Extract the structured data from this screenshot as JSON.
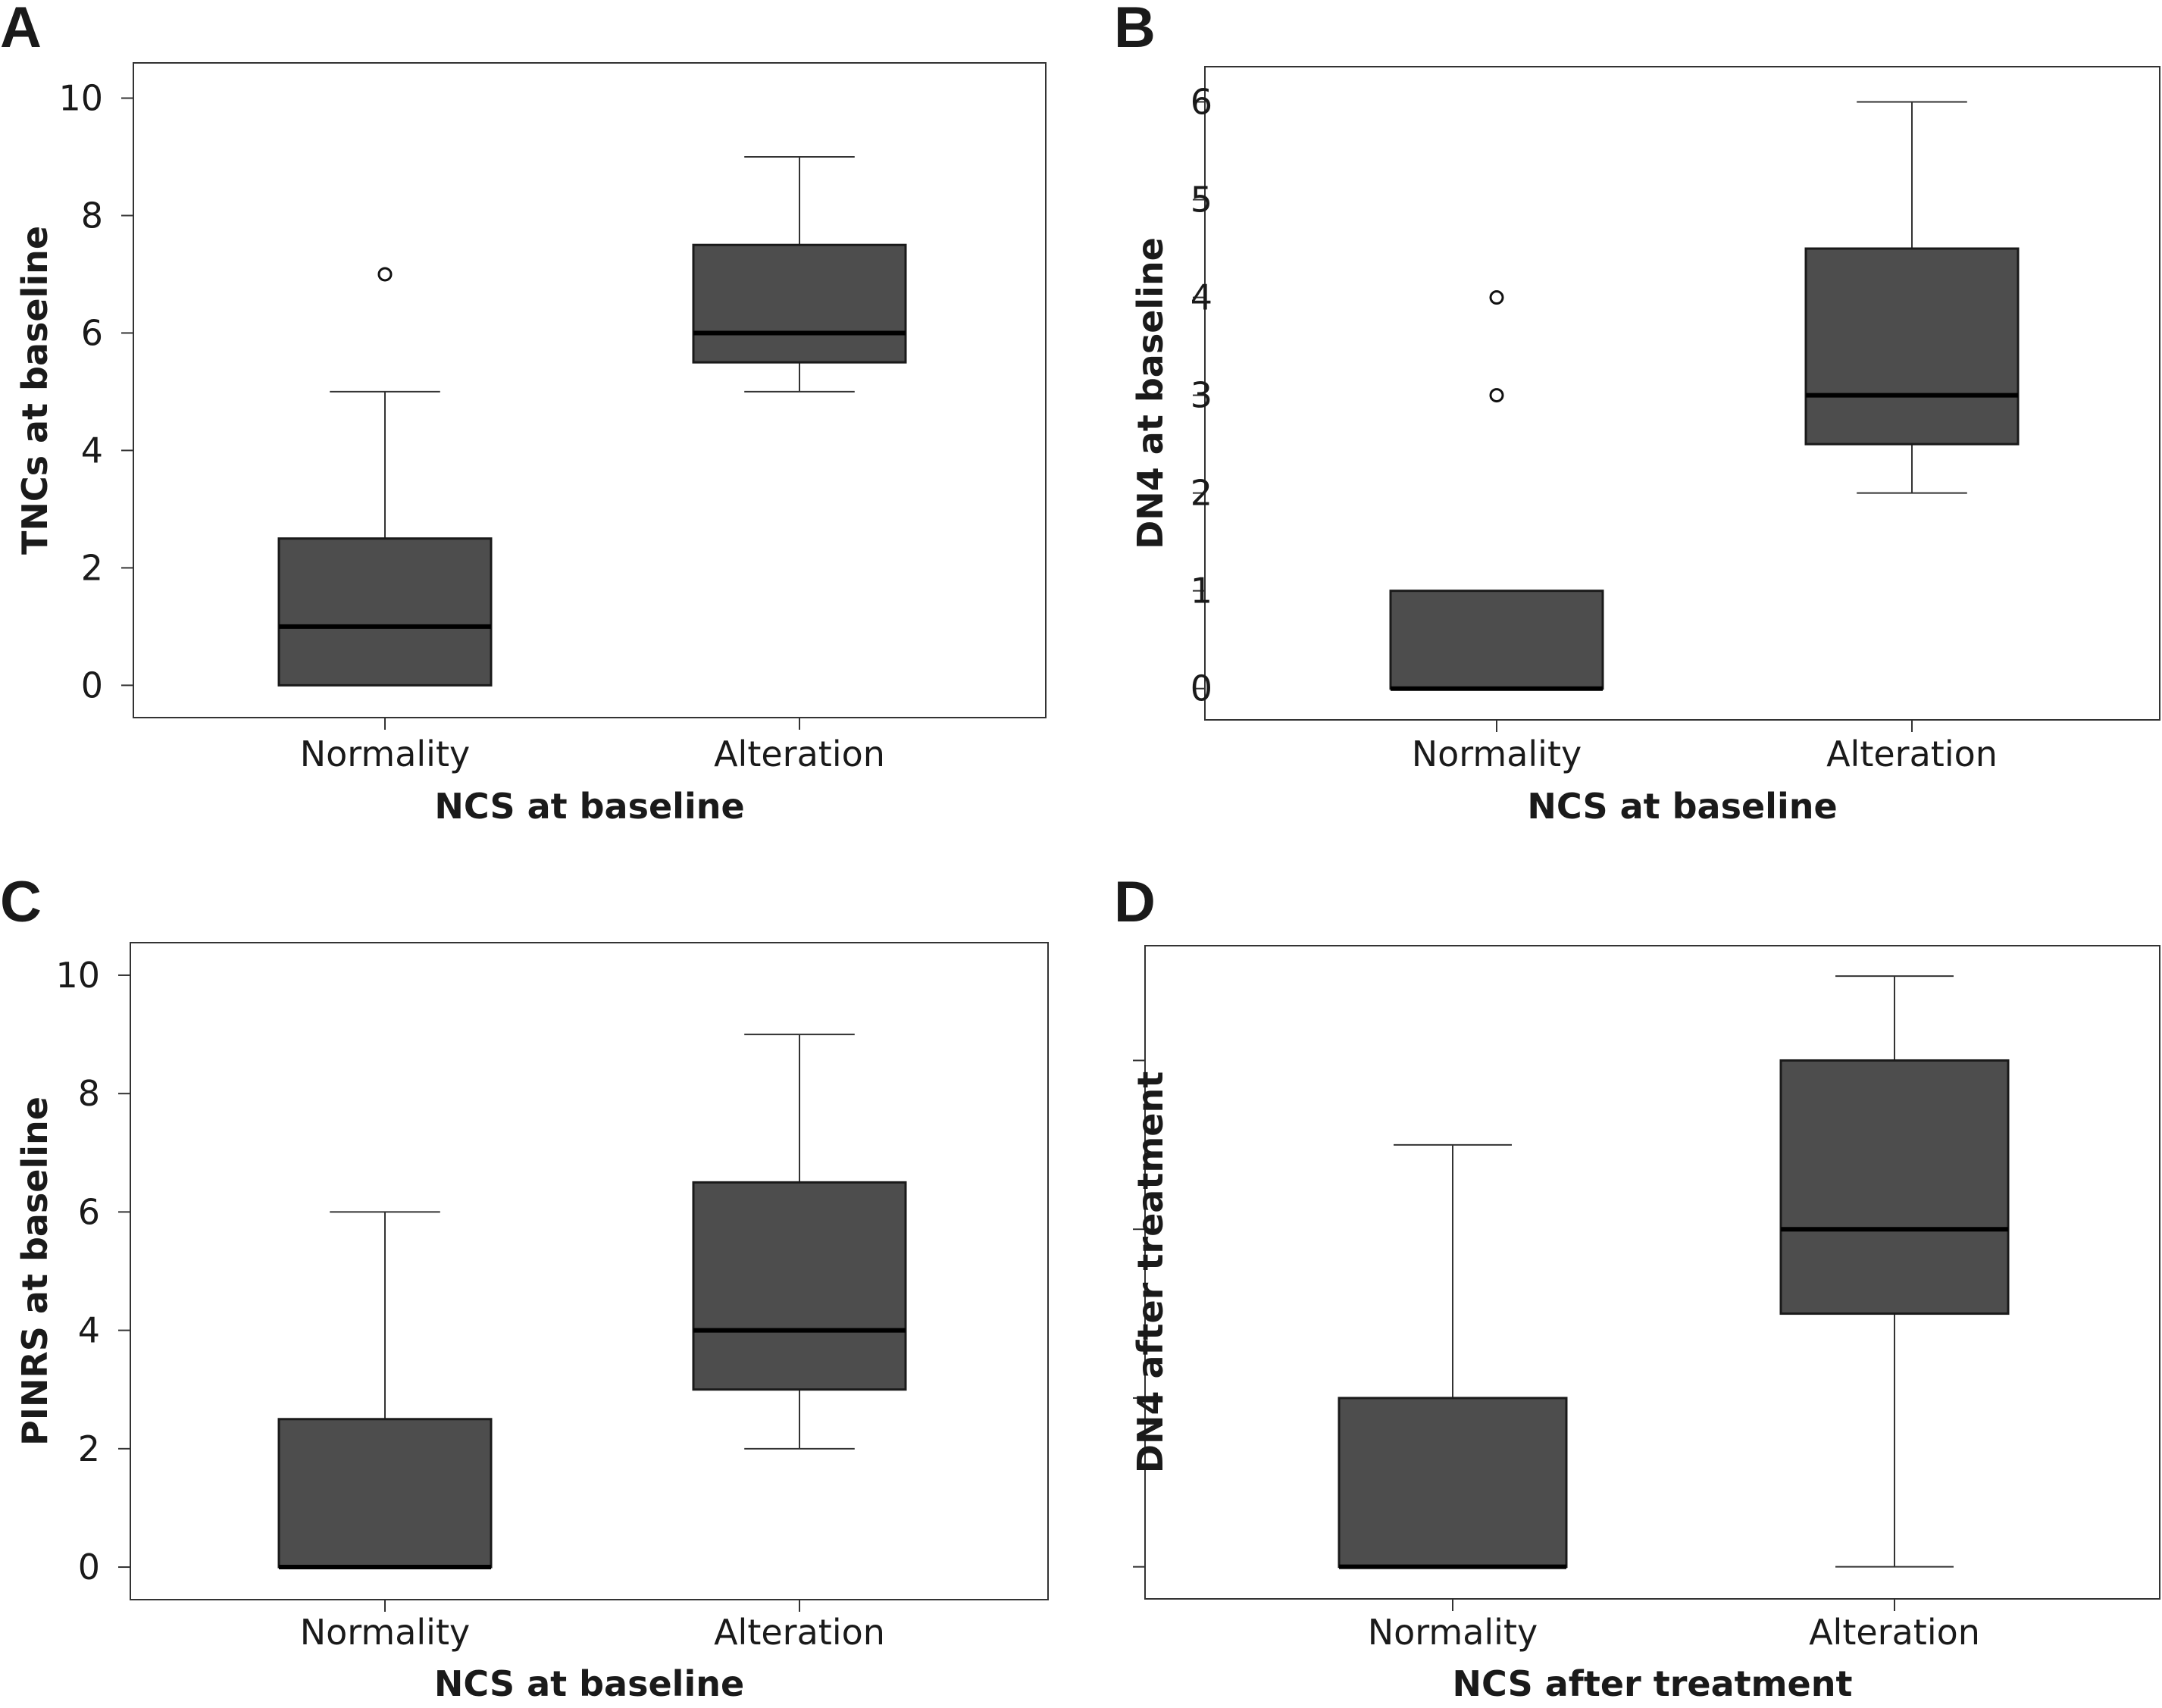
{
  "colors": {
    "box_fill": "#4d4d4d",
    "median": "#000000",
    "axis": "#333333",
    "outlier_fill": "#ffffff"
  },
  "chart_data": [
    {
      "panel": "A",
      "type": "box",
      "xlabel": "NCS at baseline",
      "ylabel": "TNCs at baseline",
      "categories": [
        "Normality",
        "Alteration"
      ],
      "ylim": [
        -0.55,
        10.6
      ],
      "yticks": [
        0,
        2,
        4,
        6,
        8,
        10
      ],
      "ytick_labels": [
        "0",
        "2",
        "4",
        "6",
        "8",
        "10"
      ],
      "boxes": [
        {
          "category": "Normality",
          "whisker_low": 0,
          "q1": 0,
          "median": 1,
          "q3": 2.5,
          "whisker_high": 5,
          "outliers": [
            7
          ]
        },
        {
          "category": "Alteration",
          "whisker_low": 5,
          "q1": 5.5,
          "median": 6,
          "q3": 7.5,
          "whisker_high": 9,
          "outliers": []
        }
      ]
    },
    {
      "panel": "B",
      "type": "box",
      "xlabel": "NCS at baseline",
      "ylabel": "DN4 at baseline",
      "categories": [
        "Normality",
        "Alteration"
      ],
      "ylim": [
        -0.32,
        6.36
      ],
      "yticks": [
        0,
        1,
        2,
        3,
        4,
        5,
        6
      ],
      "ytick_labels": [
        "0",
        "1",
        "2",
        "3",
        "4",
        "5",
        "6"
      ],
      "boxes": [
        {
          "category": "Normality",
          "whisker_low": 0,
          "q1": 0,
          "median": 0,
          "q3": 1,
          "whisker_high": 1,
          "outliers": [
            3,
            4
          ]
        },
        {
          "category": "Alteration",
          "whisker_low": 2,
          "q1": 2.5,
          "median": 3,
          "q3": 4.5,
          "whisker_high": 6,
          "outliers": []
        }
      ]
    },
    {
      "panel": "C",
      "type": "box",
      "xlabel": "NCS at baseline",
      "ylabel": "PINRS at baseline",
      "categories": [
        "Normality",
        "Alteration"
      ],
      "ylim": [
        -0.55,
        10.55
      ],
      "yticks": [
        0,
        2,
        4,
        6,
        8,
        10
      ],
      "ytick_labels": [
        "0",
        "2",
        "4",
        "6",
        "8",
        "10"
      ],
      "boxes": [
        {
          "category": "Normality",
          "whisker_low": 0,
          "q1": 0,
          "median": 0,
          "q3": 2.5,
          "whisker_high": 6,
          "outliers": []
        },
        {
          "category": "Alteration",
          "whisker_low": 2,
          "q1": 3,
          "median": 4,
          "q3": 6.5,
          "whisker_high": 9,
          "outliers": []
        }
      ]
    },
    {
      "panel": "D",
      "type": "box",
      "xlabel": "NCS after treatment",
      "ylabel": "DN4 after treatment",
      "categories": [
        "Normality",
        "Alteration"
      ],
      "ylim": [
        -0.19,
        3.68
      ],
      "yticks": [
        0,
        1,
        2,
        3
      ],
      "ytick_labels": [
        "",
        "",
        "",
        ""
      ],
      "boxes": [
        {
          "category": "Normality",
          "whisker_low": 0,
          "q1": 0,
          "median": 0,
          "q3": 1,
          "whisker_high": 2.5,
          "outliers": []
        },
        {
          "category": "Alteration",
          "whisker_low": 0,
          "q1": 1.5,
          "median": 2,
          "q3": 3,
          "whisker_high": 3.5,
          "outliers": []
        }
      ]
    }
  ]
}
